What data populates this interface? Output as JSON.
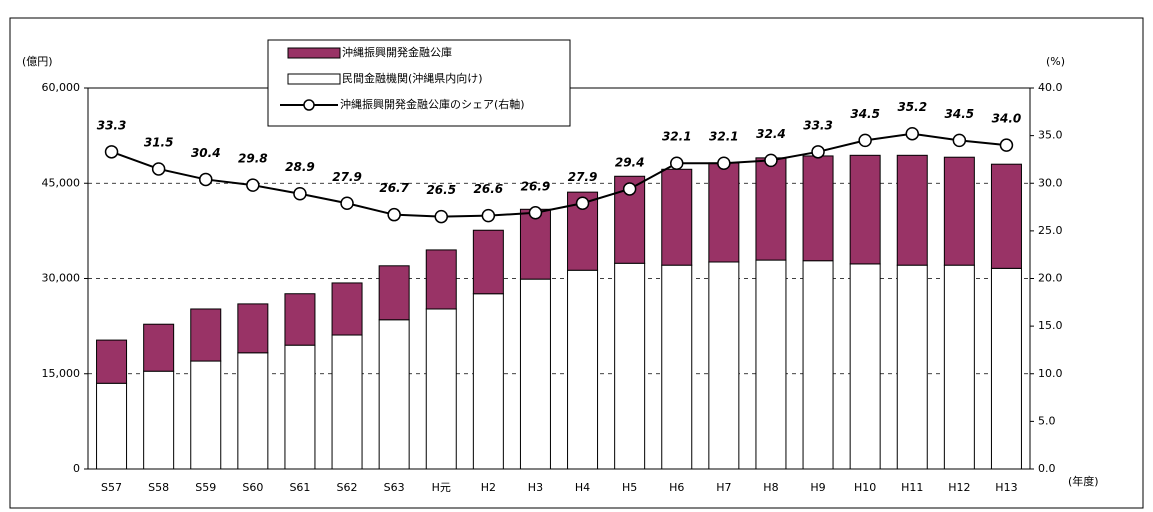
{
  "chart_data": {
    "type": "bar-line",
    "y_unit": "(億円)",
    "y2_unit": "(%)",
    "x_unit": "(年度)",
    "categories": [
      "S57",
      "S58",
      "S59",
      "S60",
      "S61",
      "S62",
      "S63",
      "H元",
      "H2",
      "H3",
      "H4",
      "H5",
      "H6",
      "H7",
      "H8",
      "H9",
      "H10",
      "H11",
      "H12",
      "H13"
    ],
    "series": [
      {
        "name": "民間金融機関(沖縄県内向け)",
        "color": "#ffffff",
        "values": [
          13500,
          15400,
          17000,
          18300,
          19500,
          21100,
          23500,
          25200,
          27600,
          29900,
          31300,
          32400,
          32100,
          32600,
          32900,
          32800,
          32300,
          32100,
          32100,
          31600
        ]
      },
      {
        "name": "沖縄振興開発金融公庫",
        "color": "#993366",
        "values": [
          6800,
          7400,
          8200,
          7700,
          8100,
          8200,
          8500,
          9300,
          10000,
          11000,
          12300,
          13700,
          15100,
          15600,
          16100,
          16500,
          17100,
          17300,
          17000,
          16400
        ]
      },
      {
        "name": "沖縄振興開発金融公庫のシェア(右軸)",
        "color": "#000000",
        "axis": "y2",
        "values": [
          33.3,
          31.5,
          30.4,
          29.8,
          28.9,
          27.9,
          26.7,
          26.5,
          26.6,
          26.9,
          27.9,
          29.4,
          32.1,
          32.1,
          32.4,
          33.3,
          34.5,
          35.2,
          34.5,
          34.0
        ],
        "value_labels": [
          "33.3",
          "31.5",
          "30.4",
          "29.8",
          "28.9",
          "27.9",
          "26.7",
          "26.5",
          "26.6",
          "26.9",
          "27.9",
          "29.4",
          "32.1",
          "32.1",
          "32.4",
          "33.3",
          "34.5",
          "35.2",
          "34.5",
          "34.0"
        ]
      }
    ],
    "ylim": [
      0,
      60000
    ],
    "yticks": [
      0,
      {
        "value": 15000,
        "label": "15,000"
      },
      {
        "value": 30000,
        "label": "30,000"
      },
      {
        "value": 45000,
        "label": "45,000"
      },
      {
        "value": 60000,
        "label": "60,000"
      }
    ],
    "y2lim": [
      0,
      40
    ],
    "y2ticks": [
      {
        "value": 0,
        "label": "0.0"
      },
      {
        "value": 5,
        "label": "5.0"
      },
      {
        "value": 10,
        "label": "10.0"
      },
      {
        "value": 15,
        "label": "15.0"
      },
      {
        "value": 20,
        "label": "20.0"
      },
      {
        "value": 25,
        "label": "25.0"
      },
      {
        "value": 30,
        "label": "30.0"
      },
      {
        "value": 35,
        "label": "35.0"
      },
      {
        "value": 40,
        "label": "40.0"
      }
    ],
    "grid": true
  }
}
